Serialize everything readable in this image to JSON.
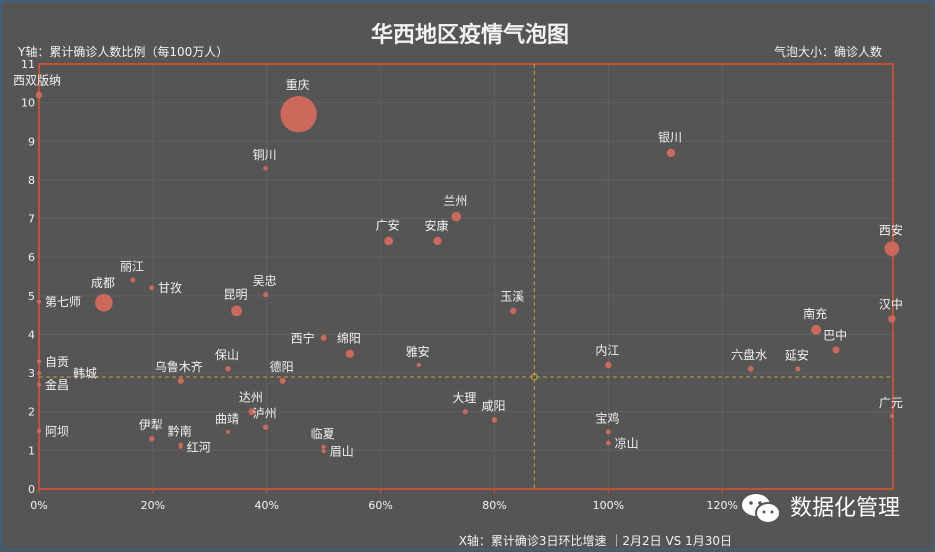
{
  "chart_data": {
    "type": "scatter",
    "title": "华西地区疫情气泡图",
    "ylabel": "Y轴：累计确诊人数比例（每100万人）",
    "size_label": "气泡大小：确诊人数",
    "xlabel": "X轴：累计确诊3日环比增速 ｜2月2日 VS 1月30日",
    "xlim": [
      0,
      150
    ],
    "ylim": [
      0,
      11
    ],
    "x_unit": "%",
    "x_ticks": [
      "0%",
      "20%",
      "40%",
      "60%",
      "80%",
      "100%",
      "120%"
    ],
    "y_ticks": [
      "0",
      "1",
      "2",
      "3",
      "4",
      "5",
      "6",
      "7",
      "8",
      "9",
      "10",
      "11"
    ],
    "grid": true,
    "reference_lines": {
      "x": 87,
      "y": 2.9
    },
    "colors": {
      "bubble": "#d46a5c",
      "axis": "#e0552a",
      "reference": "#c8a040",
      "background": "#555555"
    },
    "points": [
      {
        "name": "西双版纳",
        "x": 0,
        "y": 10.2,
        "size": 12
      },
      {
        "name": "重庆",
        "x": 45.6,
        "y": 9.7,
        "size": 366
      },
      {
        "name": "铜川",
        "x": 39.8,
        "y": 8.3,
        "size": 6
      },
      {
        "name": "银川",
        "x": 111,
        "y": 8.7,
        "size": 20
      },
      {
        "name": "兰州",
        "x": 73.3,
        "y": 7.05,
        "size": 26
      },
      {
        "name": "广安",
        "x": 61.4,
        "y": 6.42,
        "size": 21
      },
      {
        "name": "安康",
        "x": 70,
        "y": 6.42,
        "size": 19
      },
      {
        "name": "西安",
        "x": 149.8,
        "y": 6.22,
        "size": 60
      },
      {
        "name": "丽江",
        "x": 16.5,
        "y": 5.41,
        "size": 7
      },
      {
        "name": "甘孜",
        "x": 19.8,
        "y": 5.21,
        "size": 6
      },
      {
        "name": "成都",
        "x": 11.4,
        "y": 4.82,
        "size": 86
      },
      {
        "name": "吴忠",
        "x": 39.8,
        "y": 5.03,
        "size": 7
      },
      {
        "name": "第七师",
        "x": 0,
        "y": 4.85,
        "size": 2
      },
      {
        "name": "昆明",
        "x": 34.7,
        "y": 4.61,
        "size": 32
      },
      {
        "name": "玉溪",
        "x": 83.3,
        "y": 4.61,
        "size": 11
      },
      {
        "name": "汉中",
        "x": 149.8,
        "y": 4.4,
        "size": 15
      },
      {
        "name": "南充",
        "x": 136.5,
        "y": 4.12,
        "size": 27
      },
      {
        "name": "巴中",
        "x": 140,
        "y": 3.6,
        "size": 14
      },
      {
        "name": "西宁",
        "x": 50,
        "y": 3.91,
        "size": 10
      },
      {
        "name": "绵阳",
        "x": 54.6,
        "y": 3.5,
        "size": 19
      },
      {
        "name": "自贡",
        "x": 0,
        "y": 3.3,
        "size": 3
      },
      {
        "name": "雅安",
        "x": 66.7,
        "y": 3.21,
        "size": 5
      },
      {
        "name": "内江",
        "x": 100,
        "y": 3.21,
        "size": 12
      },
      {
        "name": "六盘水",
        "x": 125,
        "y": 3.11,
        "size": 9
      },
      {
        "name": "延安",
        "x": 133.3,
        "y": 3.11,
        "size": 7
      },
      {
        "name": "保山",
        "x": 33.2,
        "y": 3.11,
        "size": 8
      },
      {
        "name": "乌鲁木齐",
        "x": 24.9,
        "y": 2.8,
        "size": 10
      },
      {
        "name": "德阳",
        "x": 42.8,
        "y": 2.8,
        "size": 10
      },
      {
        "name": "韩城",
        "x": 0,
        "y": 3.0,
        "size": 2
      },
      {
        "name": "金昌",
        "x": 0,
        "y": 2.7,
        "size": 2
      },
      {
        "name": "达州",
        "x": 37.4,
        "y": 2.0,
        "size": 13
      },
      {
        "name": "泸州",
        "x": 39.8,
        "y": 1.6,
        "size": 8
      },
      {
        "name": "大理",
        "x": 74.9,
        "y": 2.0,
        "size": 7
      },
      {
        "name": "咸阳",
        "x": 80,
        "y": 1.79,
        "size": 8
      },
      {
        "name": "宝鸡",
        "x": 100,
        "y": 1.48,
        "size": 7
      },
      {
        "name": "凉山",
        "x": 100,
        "y": 1.19,
        "size": 6
      },
      {
        "name": "广元",
        "x": 149.8,
        "y": 1.89,
        "size": 4
      },
      {
        "name": "伊犁",
        "x": 19.8,
        "y": 1.3,
        "size": 8
      },
      {
        "name": "黔南",
        "x": 24.9,
        "y": 1.15,
        "size": 4
      },
      {
        "name": "红河",
        "x": 24.9,
        "y": 1.09,
        "size": 4
      },
      {
        "name": "曲靖",
        "x": 33.2,
        "y": 1.48,
        "size": 4
      },
      {
        "name": "临夏",
        "x": 50,
        "y": 1.09,
        "size": 5
      },
      {
        "name": "眉山",
        "x": 50,
        "y": 0.98,
        "size": 5
      },
      {
        "name": "阿坝",
        "x": 0,
        "y": 1.5,
        "size": 1
      }
    ]
  },
  "watermark": {
    "icon": "wechat-icon",
    "text": "数据化管理"
  }
}
